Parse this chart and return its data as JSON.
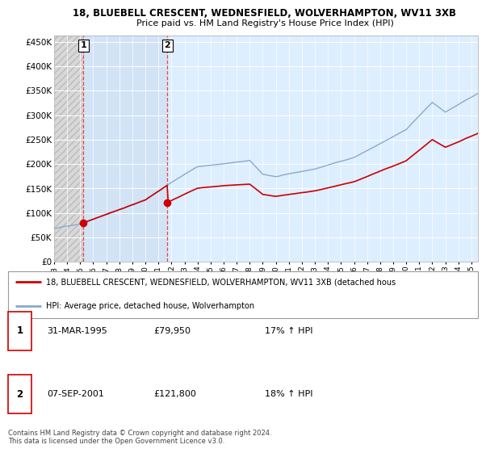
{
  "title_line1": "18, BLUEBELL CRESCENT, WEDNESFIELD, WOLVERHAMPTON, WV11 3XB",
  "title_line2": "Price paid vs. HM Land Registry's House Price Index (HPI)",
  "ylabel_ticks": [
    "£0",
    "£50K",
    "£100K",
    "£150K",
    "£200K",
    "£250K",
    "£300K",
    "£350K",
    "£400K",
    "£450K"
  ],
  "ylabel_values": [
    0,
    50000,
    100000,
    150000,
    200000,
    250000,
    300000,
    350000,
    400000,
    450000
  ],
  "ylim": [
    0,
    462000
  ],
  "xlim_start": 1993.0,
  "xlim_end": 2025.5,
  "purchase1_x": 1995.25,
  "purchase1_y": 79950,
  "purchase2_x": 2001.69,
  "purchase2_y": 121800,
  "legend_line1": "18, BLUEBELL CRESCENT, WEDNESFIELD, WOLVERHAMPTON, WV11 3XB (detached hous",
  "legend_line2": "HPI: Average price, detached house, Wolverhampton",
  "table_row1_date": "31-MAR-1995",
  "table_row1_price": "£79,950",
  "table_row1_hpi": "17% ↑ HPI",
  "table_row2_date": "07-SEP-2001",
  "table_row2_price": "£121,800",
  "table_row2_hpi": "18% ↑ HPI",
  "footer": "Contains HM Land Registry data © Crown copyright and database right 2024.\nThis data is licensed under the Open Government Licence v3.0.",
  "red_line_color": "#cc0000",
  "blue_line_color": "#88aacc",
  "hatched_bg_color": "#d8d8d8",
  "plot_bg_color": "#ddeeff",
  "between_bg_color": "#ccddf0",
  "grid_color": "#ffffff",
  "dashed_line_color": "#ee4444"
}
